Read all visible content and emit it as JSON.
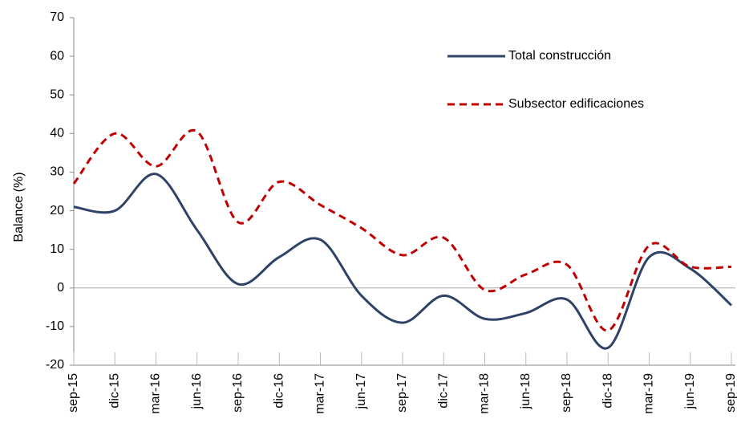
{
  "chart_data": {
    "type": "line",
    "y_label": "Balance (%)",
    "categories": [
      "sep-15",
      "dic-15",
      "mar-16",
      "jun-16",
      "sep-16",
      "dic-16",
      "mar-17",
      "jun-17",
      "sep-17",
      "dic-17",
      "mar-18",
      "jun-18",
      "sep-18",
      "dic-18",
      "mar-19",
      "jun-19",
      "sep-19"
    ],
    "series": [
      {
        "name": "Total construcción",
        "color": "#2e4366",
        "dash": false,
        "values": [
          21,
          20,
          29.5,
          15,
          1,
          8,
          12.5,
          -2,
          -9,
          -2,
          -8,
          -6.5,
          -3,
          -15.5,
          8,
          5,
          -4.5
        ]
      },
      {
        "name": "Subsector edificaciones",
        "color": "#c00000",
        "dash": true,
        "values": [
          27,
          40,
          31.5,
          40.5,
          17,
          27.5,
          21.5,
          15.5,
          8.5,
          13,
          -0.5,
          3.5,
          6,
          -11,
          11,
          5.5,
          5.5
        ]
      }
    ],
    "ylim": [
      -20,
      70
    ],
    "yticks": [
      -20,
      -10,
      0,
      10,
      20,
      30,
      40,
      50,
      60,
      70
    ],
    "legend": "upper right"
  }
}
